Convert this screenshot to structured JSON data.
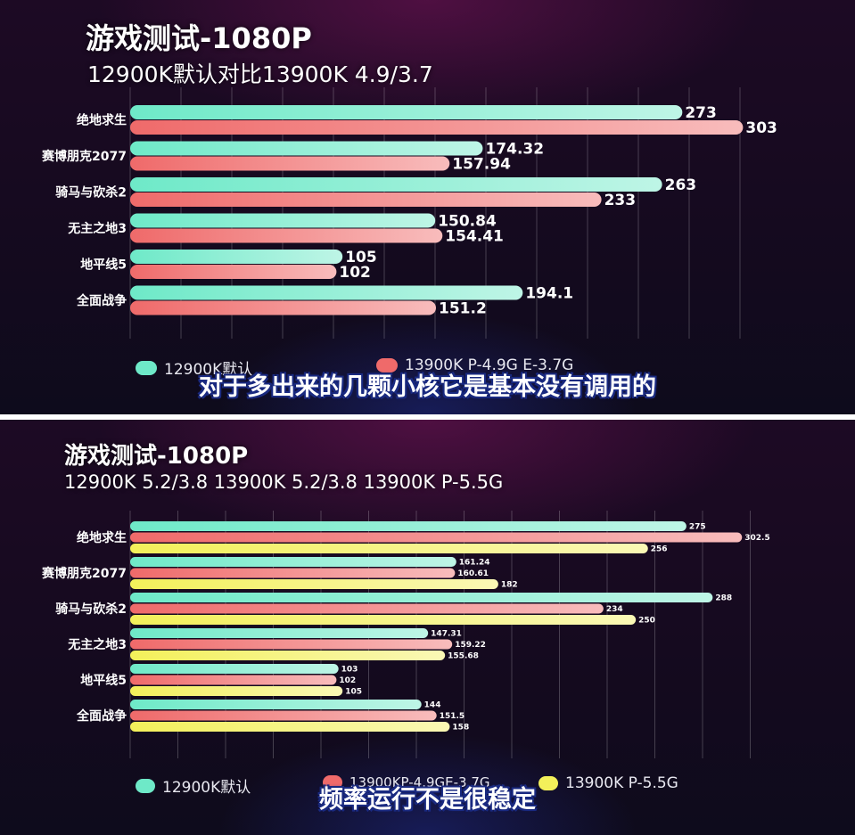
{
  "chart_data": [
    {
      "type": "bar",
      "orientation": "horizontal",
      "title": "游戏测试-1080P",
      "subtitle": "12900K默认对比13900K 4.9/3.7",
      "categories": [
        "绝地求生",
        "赛博朋克2077",
        "骑马与砍杀2",
        "无主之地3",
        "地平线5",
        "全面战争"
      ],
      "series": [
        {
          "name": "12900K默认",
          "color": "#6ee9c8",
          "values": [
            273,
            174.32,
            263,
            150.84,
            105,
            194.1
          ]
        },
        {
          "name": "13900K P-4.9G E-3.7G",
          "color": "#ef6a6a",
          "values": [
            303,
            157.94,
            233,
            154.41,
            102,
            151.2
          ]
        }
      ],
      "xlim": [
        0,
        350
      ],
      "grid": true,
      "legend_position": "bottom",
      "caption": "对于多出来的几颗小核它是基本没有调用的"
    },
    {
      "type": "bar",
      "orientation": "horizontal",
      "title": "游戏测试-1080P",
      "subtitle": "12900K 5.2/3.8  13900K 5.2/3.8  13900K  P-5.5G",
      "categories": [
        "绝地求生",
        "赛博朋克2077",
        "骑马与砍杀2",
        "无主之地3",
        "地平线5",
        "全面战争"
      ],
      "series": [
        {
          "name": "12900K默认",
          "color": "#6ee9c8",
          "values": [
            275,
            161.24,
            288,
            147.31,
            103,
            144
          ]
        },
        {
          "name": "13900KP-4.9GE-3.7G",
          "color": "#ef6a6a",
          "values": [
            302.5,
            160.61,
            234,
            159.22,
            102,
            151.5
          ]
        },
        {
          "name": "13900K  P-5.5G",
          "color": "#f3f05a",
          "values": [
            256,
            182,
            250,
            155.68,
            105,
            158
          ]
        }
      ],
      "xlim": [
        0,
        350
      ],
      "grid": true,
      "legend_position": "bottom",
      "caption": "频率运行不是很稳定"
    }
  ]
}
